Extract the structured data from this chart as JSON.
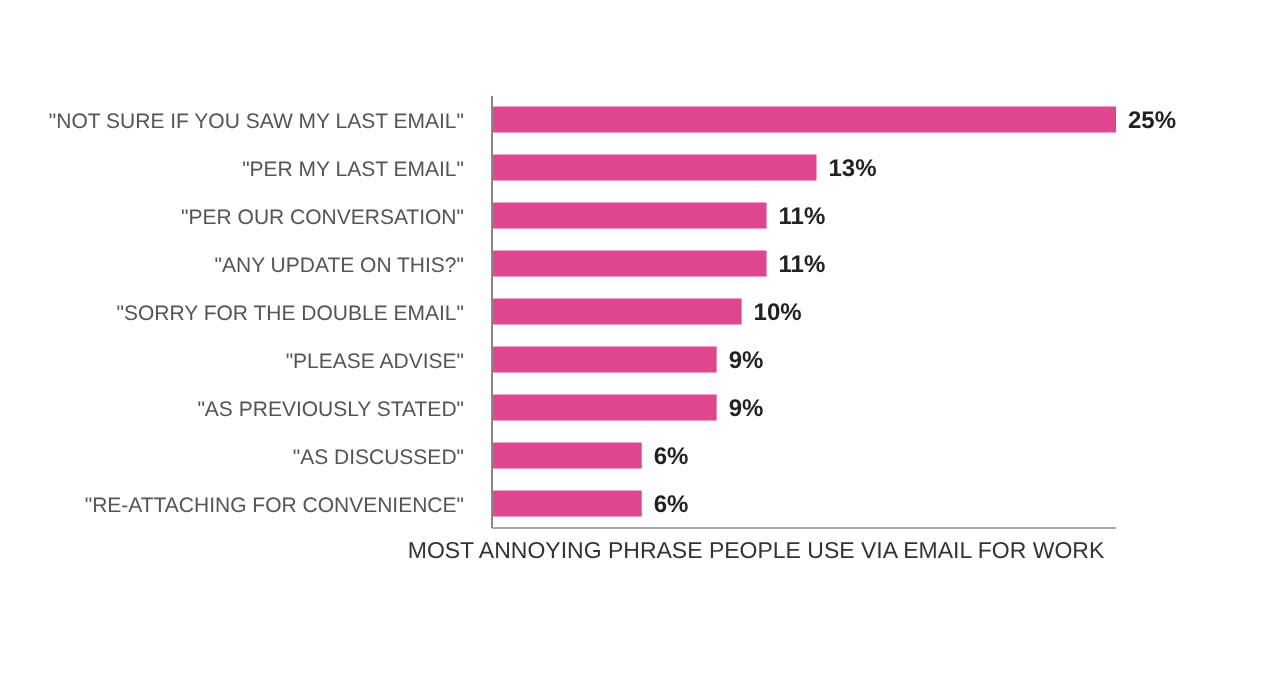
{
  "chart_data": {
    "type": "bar",
    "orientation": "horizontal",
    "relative": false,
    "categories": [
      "\"NOT SURE IF YOU SAW MY LAST EMAIL\"",
      "\"PER MY LAST EMAIL\"",
      "\"PER OUR CONVERSATION\"",
      "\"ANY UPDATE ON THIS?\"",
      "\"SORRY FOR THE DOUBLE EMAIL\"",
      "\"PLEASE ADVISE\"",
      "\"AS PREVIOUSLY STATED\"",
      "\"AS DISCUSSED\"",
      "\"RE-ATTACHING FOR CONVENIENCE\""
    ],
    "values": [
      25,
      13,
      11,
      11,
      10,
      9,
      9,
      6,
      6
    ],
    "value_labels": [
      "25%",
      "13%",
      "11%",
      "11%",
      "10%",
      "9%",
      "9%",
      "6%",
      "6%"
    ],
    "color": "#e0458f",
    "xlabel": "MOST ANNOYING PHRASE PEOPLE USE VIA EMAIL FOR WORK",
    "grid": false,
    "legend": false
  }
}
